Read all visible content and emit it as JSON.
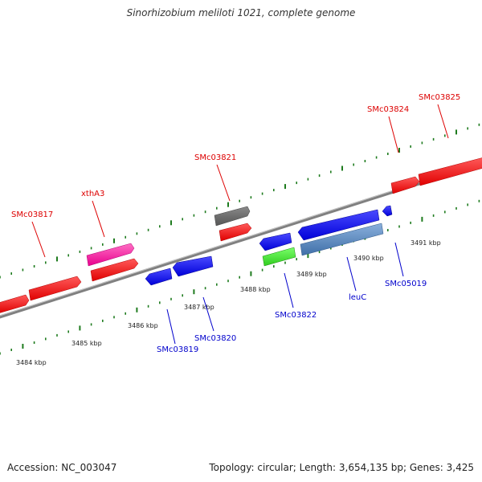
{
  "title": "Sinorhizobium meliloti 1021, complete genome",
  "footer": {
    "accession": "Accession: NC_003047",
    "summary": "Topology: circular; Length: 3,654,135 bp; Genes: 3,425"
  },
  "colors": {
    "forward_label": "#dd0000",
    "reverse_label": "#0000cc",
    "tick": "#1e7b1e",
    "backbone": "#888888"
  },
  "ruler": {
    "labels": [
      "3484 kbp",
      "3485 kbp",
      "3486 kbp",
      "3487 kbp",
      "3488 kbp",
      "3489 kbp",
      "3490 kbp",
      "3491 kbp"
    ]
  },
  "genes": [
    {
      "id": "SMc03817",
      "label": "SMc03817",
      "strand": "forward",
      "color": "#ee0000"
    },
    {
      "id": "xthA3",
      "label": "xthA3",
      "strand": "forward",
      "color": "#ee0000"
    },
    {
      "id": "SMc03821",
      "label": "SMc03821",
      "strand": "forward",
      "color": "#ee0000"
    },
    {
      "id": "SMc03824",
      "label": "SMc03824",
      "strand": "forward",
      "color": "#ee0000"
    },
    {
      "id": "SMc03825",
      "label": "SMc03825",
      "strand": "forward",
      "color": "#ee0000"
    },
    {
      "id": "SMc03819",
      "label": "SMc03819",
      "strand": "reverse",
      "color": "#0000dd"
    },
    {
      "id": "SMc03820",
      "label": "SMc03820",
      "strand": "reverse",
      "color": "#0000dd"
    },
    {
      "id": "SMc03822",
      "label": "SMc03822",
      "strand": "reverse",
      "color": "#0000dd"
    },
    {
      "id": "leuC",
      "label": "leuC",
      "strand": "reverse",
      "color": "#0000dd"
    },
    {
      "id": "SMc05019",
      "label": "SMc05019",
      "strand": "reverse",
      "color": "#0000dd"
    }
  ]
}
